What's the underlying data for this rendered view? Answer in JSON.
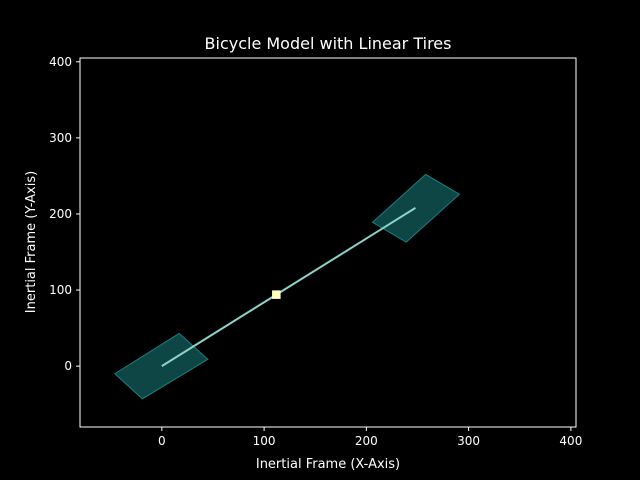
{
  "chart_data": {
    "type": "line",
    "title": "Bicycle Model with Linear Tires",
    "xlabel": "Inertial Frame (X-Axis)",
    "ylabel": "Inertial Frame (Y-Axis)",
    "xlim": [
      -80,
      405
    ],
    "ylim": [
      -80,
      405
    ],
    "xticks": [
      0,
      100,
      200,
      300,
      400
    ],
    "yticks": [
      0,
      100,
      200,
      300,
      400
    ],
    "xtick_labels": [
      "0",
      "100",
      "200",
      "300",
      "400"
    ],
    "ytick_labels": [
      "0",
      "100",
      "200",
      "300",
      "400"
    ],
    "grid": false,
    "background": "#000000",
    "series": [
      {
        "type": "line",
        "x": [
          0,
          248
        ],
        "y": [
          0,
          208
        ],
        "color": "#8dd3c7"
      },
      {
        "type": "marker",
        "x": [
          112
        ],
        "y": [
          94
        ],
        "color": "#ffffb3"
      }
    ],
    "polygons": [
      {
        "x": [
          -46,
          17,
          45,
          -19
        ],
        "y": [
          -10,
          43,
          9,
          -43
        ],
        "color": "#1a8080"
      },
      {
        "x": [
          206,
          258,
          291,
          239
        ],
        "y": [
          189,
          252,
          226,
          163
        ],
        "color": "#1a8080"
      }
    ]
  }
}
